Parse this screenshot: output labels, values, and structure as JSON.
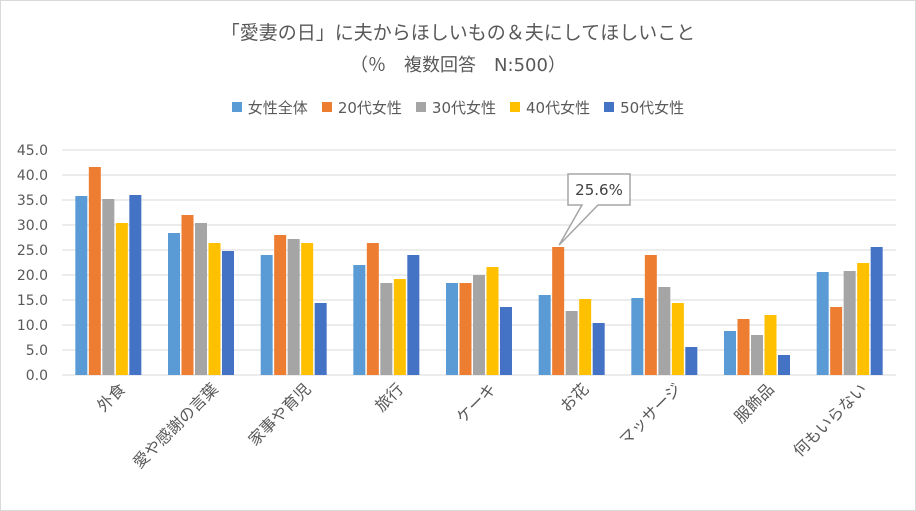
{
  "chart_data": {
    "type": "bar",
    "title": "「愛妻の日」に夫からほしいもの＆夫にしてほしいこと",
    "subtitle": "（％　複数回答　N:500）",
    "categories": [
      "外食",
      "愛や感謝の言葉",
      "家事や育児",
      "旅行",
      "ケーキ",
      "お花",
      "マッサージ",
      "服飾品",
      "何もいらない"
    ],
    "series": [
      {
        "name": "女性全体",
        "color": "#5b9bd5",
        "values": [
          35.8,
          28.4,
          24.0,
          22.0,
          18.4,
          16.0,
          15.4,
          8.8,
          20.6
        ]
      },
      {
        "name": "20代女性",
        "color": "#ed7d31",
        "values": [
          41.6,
          32.0,
          28.0,
          26.4,
          18.4,
          25.6,
          24.0,
          11.2,
          13.6
        ]
      },
      {
        "name": "30代女性",
        "color": "#a5a5a5",
        "values": [
          35.2,
          30.4,
          27.2,
          18.4,
          20.0,
          12.8,
          17.6,
          8.0,
          20.8
        ]
      },
      {
        "name": "40代女性",
        "color": "#ffc000",
        "values": [
          30.4,
          26.4,
          26.4,
          19.2,
          21.6,
          15.2,
          14.4,
          12.0,
          22.4
        ]
      },
      {
        "name": "50代女性",
        "color": "#4472c4",
        "values": [
          36.0,
          24.8,
          14.4,
          24.0,
          13.6,
          10.4,
          5.6,
          4.0,
          25.6
        ]
      }
    ],
    "ylim": [
      0,
      45
    ],
    "yticks": [
      "0.0",
      "5.0",
      "10.0",
      "15.0",
      "20.0",
      "25.0",
      "30.0",
      "35.0",
      "40.0",
      "45.0"
    ],
    "grid": true,
    "legend": "top",
    "callout": {
      "text": "25.6%",
      "category": "お花",
      "series": "20代女性"
    }
  }
}
